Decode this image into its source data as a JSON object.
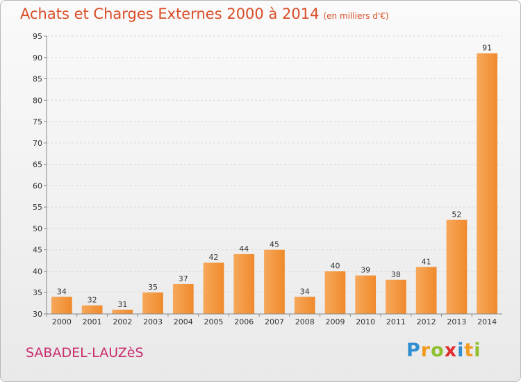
{
  "header": {
    "title": "Achats et Charges Externes 2000 à 2014",
    "unit": "(en milliers d'€)"
  },
  "footer": {
    "commune": "SABADEL-LAUZèS",
    "brand": {
      "letters": [
        "P",
        "r",
        "o",
        "x",
        "i",
        "t",
        "i"
      ],
      "colors": [
        "#2e8fd0",
        "#f19a1e",
        "#8dbf2f",
        "#e02d2d",
        "#2e8fd0",
        "#f19a1e",
        "#8dbf2f"
      ]
    }
  },
  "chart_data": {
    "type": "bar",
    "categories": [
      "2000",
      "2001",
      "2002",
      "2003",
      "2004",
      "2005",
      "2006",
      "2007",
      "2008",
      "2009",
      "2010",
      "2011",
      "2012",
      "2013",
      "2014"
    ],
    "values": [
      34,
      32,
      31,
      35,
      37,
      42,
      44,
      45,
      34,
      40,
      39,
      38,
      41,
      52,
      91
    ],
    "ylim": [
      30,
      95
    ],
    "yticks": [
      30,
      35,
      40,
      45,
      50,
      55,
      60,
      65,
      70,
      75,
      80,
      85,
      90,
      95
    ],
    "grid": "horizontal-dashed",
    "bar_color": "#f08a2c",
    "bar_color_light": "#f6a85a",
    "grid_color": "#d9d9d9",
    "axis_color": "#888888"
  }
}
